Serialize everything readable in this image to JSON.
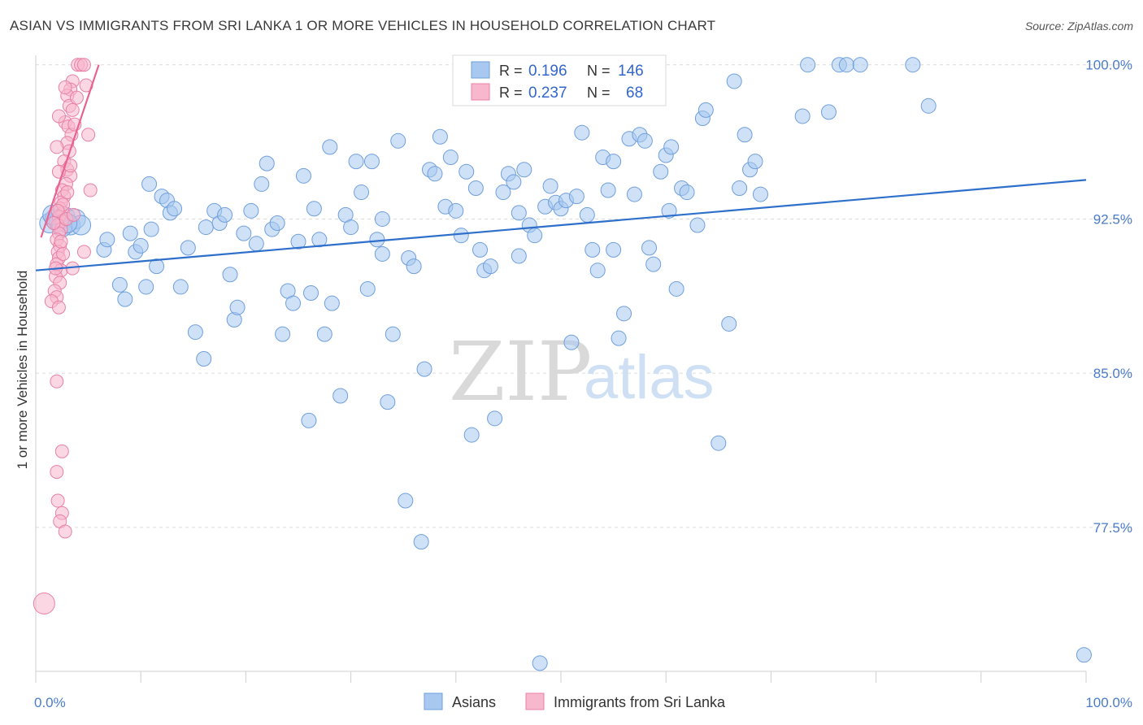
{
  "title": "ASIAN VS IMMIGRANTS FROM SRI LANKA 1 OR MORE VEHICLES IN HOUSEHOLD CORRELATION CHART",
  "source": "Source: ZipAtlas.com",
  "watermark": {
    "zip": "ZIP",
    "atlas": "atlas"
  },
  "legend": {
    "rows": [
      {
        "r_label": "R =",
        "r_value": "0.196",
        "n_label": "N =",
        "n_value": "146",
        "color": "#a8c8f0",
        "stroke": "#6f9fdc"
      },
      {
        "r_label": "R =",
        "r_value": "0.237",
        "n_label": "N =",
        "n_value": "68",
        "color": "#f7b7cc",
        "stroke": "#e880a6"
      }
    ]
  },
  "bottom_legend": [
    {
      "label": "Asians",
      "color": "#a8c8f0",
      "stroke": "#6f9fdc"
    },
    {
      "label": "Immigrants from Sri Lanka",
      "color": "#f7b7cc",
      "stroke": "#e880a6"
    }
  ],
  "chart_data": {
    "type": "scatter",
    "title": "ASIAN VS IMMIGRANTS FROM SRI LANKA 1 OR MORE VEHICLES IN HOUSEHOLD CORRELATION CHART",
    "xlabel": "",
    "ylabel": "1 or more Vehicles in Household",
    "xlim": [
      0,
      100
    ],
    "ylim": [
      70.5,
      100.7
    ],
    "y_ticks": [
      100.0,
      92.5,
      85.0,
      77.5
    ],
    "y_tick_labels": [
      "100.0%",
      "92.5%",
      "85.0%",
      "77.5%"
    ],
    "x_tick_labels": [
      "0.0%",
      "100.0%"
    ],
    "grid": true,
    "series": [
      {
        "name": "Asians",
        "color": "#a8c8f0",
        "stroke": "#6f9fdc",
        "trend": {
          "x0": 0,
          "y0": 90.0,
          "x1": 100,
          "y1": 94.4,
          "color": "#2f6fcc"
        },
        "points": [
          [
            1.3,
            92.3
          ],
          [
            1.8,
            92.5
          ],
          [
            2.2,
            92.4
          ],
          [
            2.8,
            92.6
          ],
          [
            3.3,
            92.2
          ],
          [
            3.8,
            92.5
          ],
          [
            4.3,
            92.2
          ],
          [
            2.5,
            92.1
          ],
          [
            1.6,
            92.7
          ],
          [
            3.0,
            92.3
          ],
          [
            6.5,
            91.0
          ],
          [
            6.8,
            91.5
          ],
          [
            8.0,
            89.3
          ],
          [
            8.5,
            88.6
          ],
          [
            9.0,
            91.8
          ],
          [
            9.5,
            90.9
          ],
          [
            10.0,
            91.2
          ],
          [
            10.5,
            89.2
          ],
          [
            11.0,
            92.0
          ],
          [
            10.8,
            94.2
          ],
          [
            11.5,
            90.2
          ],
          [
            12.0,
            93.6
          ],
          [
            12.5,
            93.4
          ],
          [
            12.8,
            92.8
          ],
          [
            13.2,
            93.0
          ],
          [
            13.8,
            89.2
          ],
          [
            14.5,
            91.1
          ],
          [
            15.2,
            87.0
          ],
          [
            16.0,
            85.7
          ],
          [
            16.2,
            92.1
          ],
          [
            17.0,
            92.9
          ],
          [
            17.5,
            92.3
          ],
          [
            18.0,
            92.7
          ],
          [
            18.5,
            89.8
          ],
          [
            18.9,
            87.6
          ],
          [
            19.2,
            88.2
          ],
          [
            19.8,
            91.8
          ],
          [
            20.5,
            92.9
          ],
          [
            21.0,
            91.3
          ],
          [
            21.5,
            94.2
          ],
          [
            22.0,
            95.2
          ],
          [
            22.5,
            92.0
          ],
          [
            23.0,
            92.3
          ],
          [
            23.5,
            86.9
          ],
          [
            24.0,
            89.0
          ],
          [
            24.5,
            88.4
          ],
          [
            25.0,
            91.4
          ],
          [
            25.5,
            94.6
          ],
          [
            26.0,
            82.7
          ],
          [
            26.5,
            93.0
          ],
          [
            27.0,
            91.5
          ],
          [
            27.5,
            86.9
          ],
          [
            28.0,
            96.0
          ],
          [
            28.2,
            88.4
          ],
          [
            29.0,
            83.9
          ],
          [
            29.5,
            92.7
          ],
          [
            30.0,
            92.1
          ],
          [
            30.5,
            95.3
          ],
          [
            31.0,
            93.8
          ],
          [
            31.6,
            89.1
          ],
          [
            32.0,
            95.3
          ],
          [
            32.5,
            91.5
          ],
          [
            33.0,
            90.8
          ],
          [
            33.5,
            83.6
          ],
          [
            34.0,
            86.9
          ],
          [
            34.5,
            96.3
          ],
          [
            35.2,
            78.8
          ],
          [
            35.5,
            90.6
          ],
          [
            36.0,
            90.2
          ],
          [
            36.7,
            76.8
          ],
          [
            37.0,
            85.2
          ],
          [
            37.5,
            94.9
          ],
          [
            38.0,
            94.7
          ],
          [
            38.5,
            96.5
          ],
          [
            39.0,
            93.1
          ],
          [
            39.5,
            95.5
          ],
          [
            40.0,
            92.9
          ],
          [
            40.5,
            91.7
          ],
          [
            41.0,
            94.8
          ],
          [
            41.5,
            82.0
          ],
          [
            41.9,
            94.0
          ],
          [
            42.3,
            91.0
          ],
          [
            42.7,
            90.0
          ],
          [
            43.3,
            90.2
          ],
          [
            43.7,
            82.8
          ],
          [
            44.5,
            93.8
          ],
          [
            45.0,
            94.7
          ],
          [
            45.5,
            94.3
          ],
          [
            46.0,
            90.7
          ],
          [
            46.5,
            94.9
          ],
          [
            47.0,
            92.2
          ],
          [
            47.5,
            91.7
          ],
          [
            48.0,
            70.9
          ],
          [
            48.5,
            93.1
          ],
          [
            49.0,
            94.1
          ],
          [
            49.5,
            93.3
          ],
          [
            50.0,
            93.0
          ],
          [
            50.5,
            93.4
          ],
          [
            51.0,
            86.5
          ],
          [
            51.5,
            93.6
          ],
          [
            52.0,
            96.7
          ],
          [
            52.5,
            92.7
          ],
          [
            53.0,
            91.0
          ],
          [
            53.5,
            90.0
          ],
          [
            54.0,
            95.5
          ],
          [
            54.5,
            93.9
          ],
          [
            55.0,
            95.3
          ],
          [
            55.5,
            86.7
          ],
          [
            56.0,
            87.9
          ],
          [
            56.5,
            96.4
          ],
          [
            57.0,
            93.7
          ],
          [
            57.5,
            96.6
          ],
          [
            58.0,
            96.3
          ],
          [
            58.4,
            91.1
          ],
          [
            58.8,
            90.3
          ],
          [
            59.5,
            94.8
          ],
          [
            60.0,
            95.6
          ],
          [
            60.5,
            96.0
          ],
          [
            61.0,
            89.1
          ],
          [
            61.5,
            94.0
          ],
          [
            62.0,
            93.8
          ],
          [
            63.0,
            92.2
          ],
          [
            63.5,
            97.4
          ],
          [
            63.8,
            97.8
          ],
          [
            65.0,
            81.6
          ],
          [
            66.0,
            87.4
          ],
          [
            66.5,
            99.2
          ],
          [
            67.0,
            94.0
          ],
          [
            67.5,
            96.6
          ],
          [
            68.0,
            94.9
          ],
          [
            68.5,
            95.3
          ],
          [
            69.0,
            93.7
          ],
          [
            73.0,
            97.5
          ],
          [
            73.5,
            100.0
          ],
          [
            75.5,
            97.7
          ],
          [
            76.5,
            100.0
          ],
          [
            77.2,
            100.0
          ],
          [
            78.5,
            100.0
          ],
          [
            83.5,
            100.0
          ],
          [
            85.0,
            98.0
          ],
          [
            99.8,
            71.3
          ],
          [
            60.3,
            92.9
          ],
          [
            55.0,
            91.0
          ],
          [
            26.2,
            88.9
          ],
          [
            33.0,
            92.5
          ],
          [
            46.0,
            92.8
          ]
        ]
      },
      {
        "name": "Immigrants from Sri Lanka",
        "color": "#f7b7cc",
        "stroke": "#e880a6",
        "trend": {
          "x0": 0.5,
          "y0": 91.6,
          "x1": 6.0,
          "y1": 100.0,
          "color": "#e8638f"
        },
        "points": [
          [
            4.0,
            100.0
          ],
          [
            4.3,
            100.0
          ],
          [
            4.6,
            100.0
          ],
          [
            3.5,
            99.2
          ],
          [
            3.3,
            98.8
          ],
          [
            4.8,
            99.0
          ],
          [
            3.0,
            98.5
          ],
          [
            3.2,
            98.0
          ],
          [
            3.5,
            97.8
          ],
          [
            2.8,
            97.2
          ],
          [
            3.1,
            97.0
          ],
          [
            3.4,
            96.6
          ],
          [
            5.0,
            96.6
          ],
          [
            3.0,
            96.2
          ],
          [
            3.2,
            95.8
          ],
          [
            2.7,
            95.3
          ],
          [
            3.0,
            94.9
          ],
          [
            3.3,
            94.6
          ],
          [
            2.9,
            94.2
          ],
          [
            2.5,
            93.9
          ],
          [
            2.7,
            93.6
          ],
          [
            2.4,
            93.3
          ],
          [
            5.2,
            93.9
          ],
          [
            2.3,
            93.0
          ],
          [
            2.6,
            92.8
          ],
          [
            2.2,
            92.6
          ],
          [
            2.5,
            92.4
          ],
          [
            2.1,
            92.2
          ],
          [
            2.4,
            92.0
          ],
          [
            2.2,
            91.8
          ],
          [
            2.0,
            91.5
          ],
          [
            2.3,
            91.2
          ],
          [
            2.1,
            90.9
          ],
          [
            4.6,
            90.9
          ],
          [
            2.2,
            90.6
          ],
          [
            2.0,
            90.3
          ],
          [
            2.4,
            90.0
          ],
          [
            1.9,
            89.7
          ],
          [
            2.3,
            89.4
          ],
          [
            1.8,
            89.0
          ],
          [
            2.0,
            88.7
          ],
          [
            1.5,
            88.5
          ],
          [
            2.2,
            88.2
          ],
          [
            3.5,
            90.1
          ],
          [
            2.0,
            84.6
          ],
          [
            2.5,
            81.2
          ],
          [
            2.0,
            80.2
          ],
          [
            2.1,
            78.8
          ],
          [
            2.5,
            78.2
          ],
          [
            2.3,
            77.8
          ],
          [
            2.8,
            77.3
          ],
          [
            0.8,
            73.8
          ],
          [
            2.0,
            96.0
          ],
          [
            2.2,
            97.5
          ],
          [
            2.6,
            93.2
          ],
          [
            2.1,
            92.9
          ],
          [
            2.9,
            92.5
          ],
          [
            3.6,
            92.7
          ],
          [
            1.7,
            92.3
          ],
          [
            2.4,
            91.4
          ],
          [
            2.6,
            90.8
          ],
          [
            1.9,
            90.1
          ],
          [
            3.0,
            93.8
          ],
          [
            3.3,
            95.1
          ],
          [
            2.2,
            94.8
          ],
          [
            2.8,
            98.9
          ],
          [
            3.9,
            98.4
          ],
          [
            3.7,
            97.1
          ]
        ]
      }
    ]
  }
}
